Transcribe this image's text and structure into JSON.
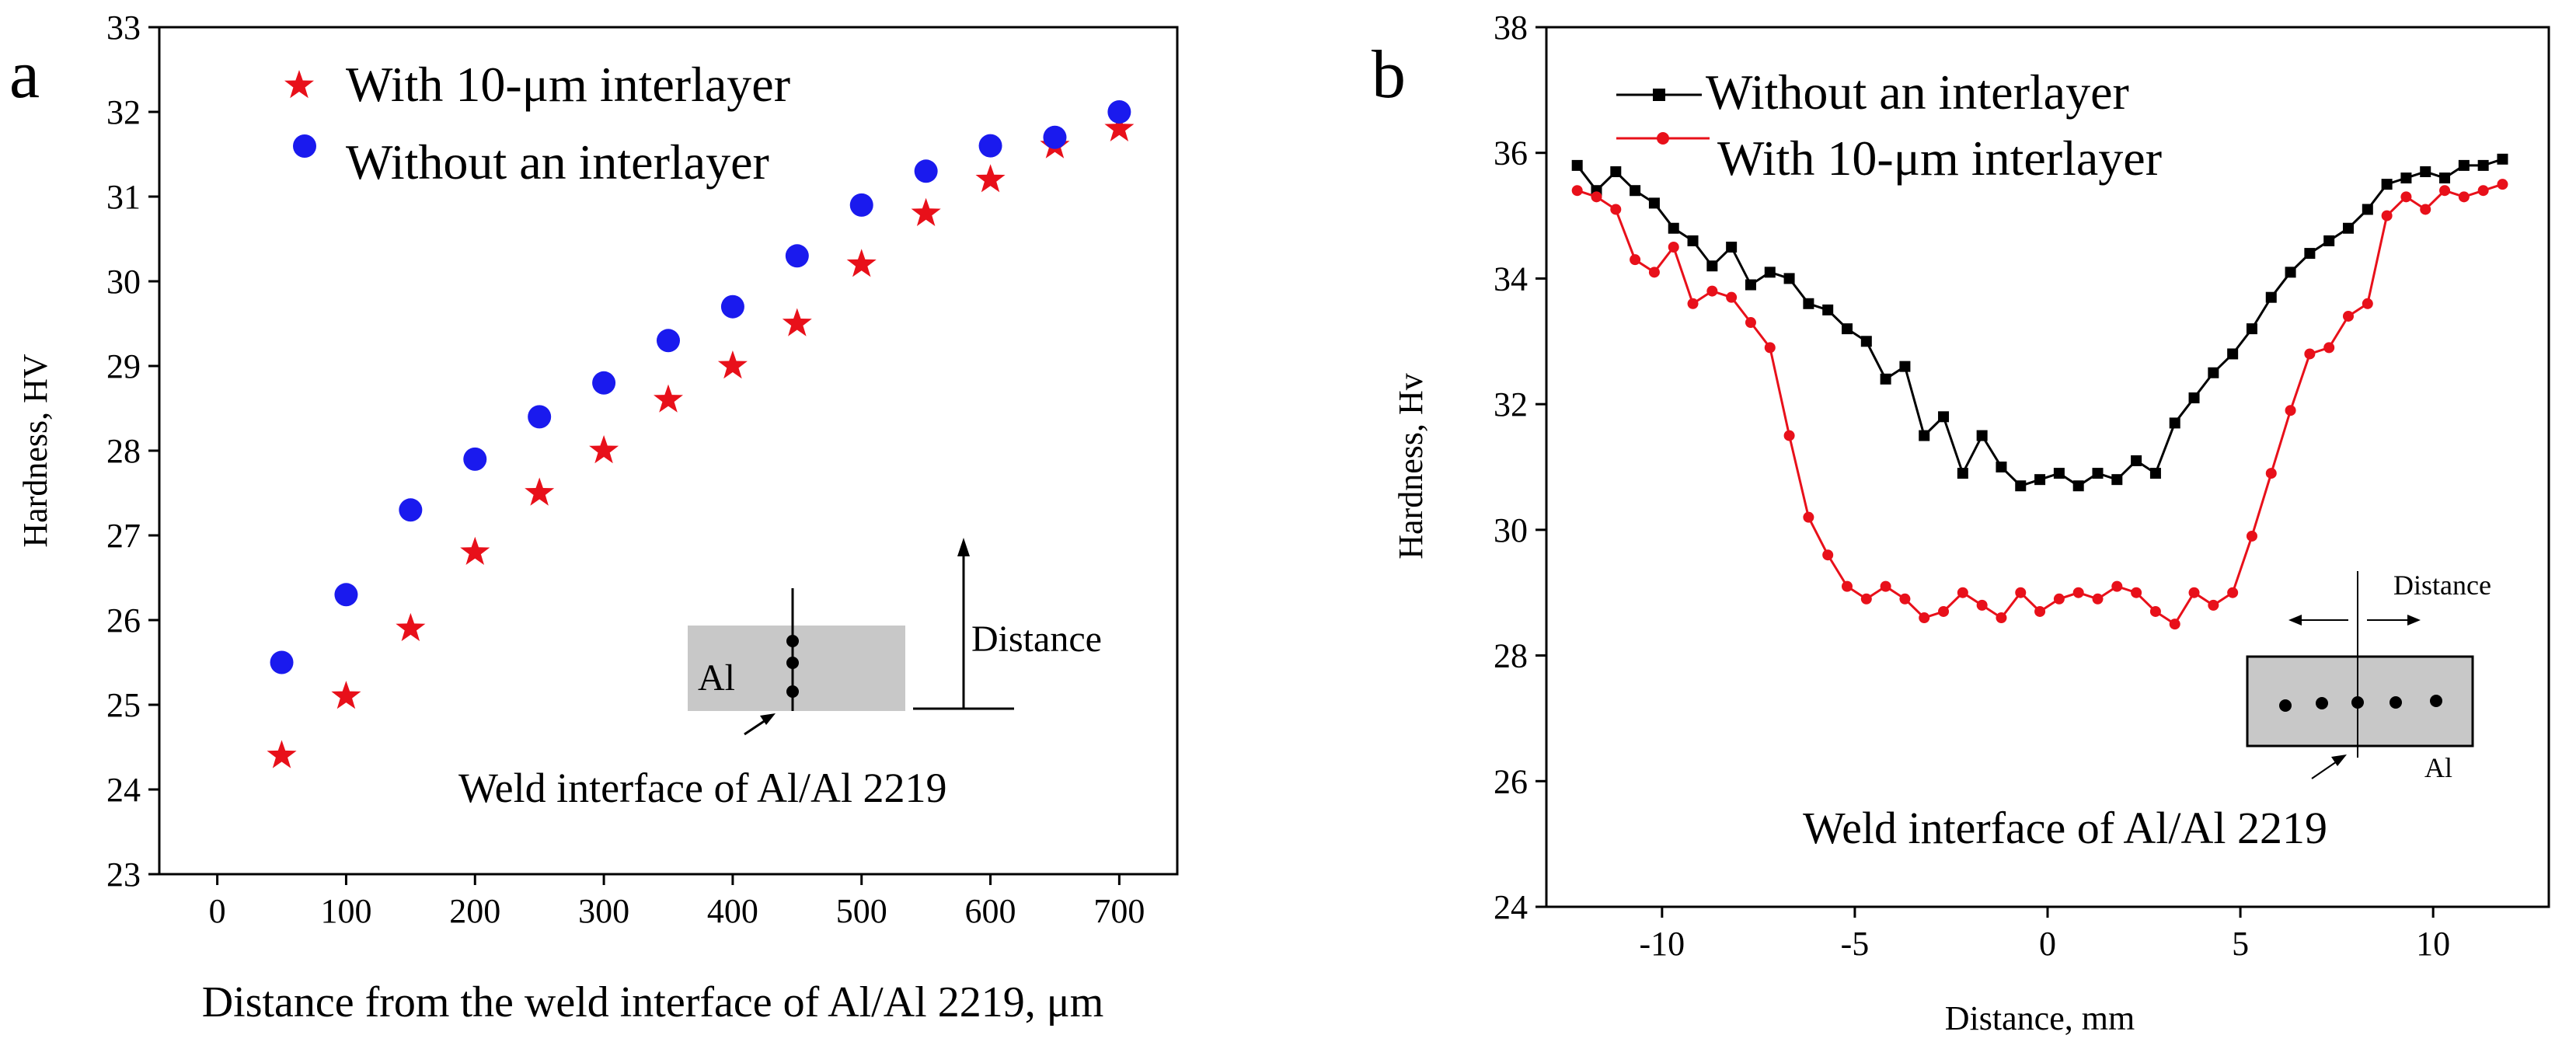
{
  "panels": {
    "a": {
      "label": "a",
      "inset": {
        "material": "Al",
        "arrow_label": "Distance",
        "caption": "Weld interface of Al/Al 2219"
      }
    },
    "b": {
      "label": "b",
      "inset": {
        "material": "Al",
        "arrow_label": "Distance",
        "caption": "Weld interface of Al/Al 2219"
      }
    }
  },
  "chart_data": [
    {
      "type": "scatter",
      "panel": "a",
      "xlabel": "Distance from the weld interface of Al/Al 2219, μm",
      "ylabel": "Hardness, HV",
      "xlim": [
        -45,
        745
      ],
      "ylim": [
        23,
        33
      ],
      "xticks": [
        0,
        100,
        200,
        300,
        400,
        500,
        600,
        700
      ],
      "yticks": [
        23,
        24,
        25,
        26,
        27,
        28,
        29,
        30,
        31,
        32,
        33
      ],
      "legend_position": "top-left",
      "grid": false,
      "series": [
        {
          "name": "With 10-μm interlayer",
          "marker": "star",
          "color": "#e8101a",
          "x": [
            50,
            100,
            150,
            200,
            250,
            300,
            350,
            400,
            450,
            500,
            550,
            600,
            650,
            700
          ],
          "y": [
            24.4,
            25.1,
            25.9,
            26.8,
            27.5,
            28.0,
            28.6,
            29.0,
            29.5,
            30.2,
            30.8,
            31.2,
            31.6,
            31.8
          ]
        },
        {
          "name": "Without an interlayer",
          "marker": "circle",
          "color": "#1a1aee",
          "x": [
            50,
            100,
            150,
            200,
            250,
            300,
            350,
            400,
            450,
            500,
            550,
            600,
            650,
            700
          ],
          "y": [
            25.5,
            26.3,
            27.3,
            27.9,
            28.4,
            28.8,
            29.3,
            29.7,
            30.3,
            30.9,
            31.3,
            31.6,
            31.7,
            32.0
          ]
        }
      ]
    },
    {
      "type": "line",
      "panel": "b",
      "xlabel": "Distance, mm",
      "ylabel": "Hardness, Hv",
      "xlim": [
        -13,
        13
      ],
      "ylim": [
        24,
        38
      ],
      "xticks": [
        -10,
        -5,
        0,
        5,
        10
      ],
      "yticks": [
        24,
        26,
        28,
        30,
        32,
        34,
        36,
        38
      ],
      "legend_position": "top-left",
      "grid": false,
      "series": [
        {
          "name": "Without an interlayer",
          "marker": "square",
          "color": "#000000",
          "x": [
            -12.2,
            -11.7,
            -11.2,
            -10.7,
            -10.2,
            -9.7,
            -9.2,
            -8.7,
            -8.2,
            -7.7,
            -7.2,
            -6.7,
            -6.2,
            -5.7,
            -5.2,
            -4.7,
            -4.2,
            -3.7,
            -3.2,
            -2.7,
            -2.2,
            -1.7,
            -1.2,
            -0.7,
            -0.2,
            0.3,
            0.8,
            1.3,
            1.8,
            2.3,
            2.8,
            3.3,
            3.8,
            4.3,
            4.8,
            5.3,
            5.8,
            6.3,
            6.8,
            7.3,
            7.8,
            8.3,
            8.8,
            9.3,
            9.8,
            10.3,
            10.8,
            11.3,
            11.8
          ],
          "y": [
            35.8,
            35.4,
            35.7,
            35.4,
            35.2,
            34.8,
            34.6,
            34.2,
            34.5,
            33.9,
            34.1,
            34.0,
            33.6,
            33.5,
            33.2,
            33.0,
            32.4,
            32.6,
            31.5,
            31.8,
            30.9,
            31.5,
            31.0,
            30.7,
            30.8,
            30.9,
            30.7,
            30.9,
            30.8,
            31.1,
            30.9,
            31.7,
            32.1,
            32.5,
            32.8,
            33.2,
            33.7,
            34.1,
            34.4,
            34.6,
            34.8,
            35.1,
            35.5,
            35.6,
            35.7,
            35.6,
            35.8,
            35.8,
            35.9
          ]
        },
        {
          "name": "With 10-μm interlayer",
          "marker": "circle",
          "color": "#e8101a",
          "x": [
            -12.2,
            -11.7,
            -11.2,
            -10.7,
            -10.2,
            -9.7,
            -9.2,
            -8.7,
            -8.2,
            -7.7,
            -7.2,
            -6.7,
            -6.2,
            -5.7,
            -5.2,
            -4.7,
            -4.2,
            -3.7,
            -3.2,
            -2.7,
            -2.2,
            -1.7,
            -1.2,
            -0.7,
            -0.2,
            0.3,
            0.8,
            1.3,
            1.8,
            2.3,
            2.8,
            3.3,
            3.8,
            4.3,
            4.8,
            5.3,
            5.8,
            6.3,
            6.8,
            7.3,
            7.8,
            8.3,
            8.8,
            9.3,
            9.8,
            10.3,
            10.8,
            11.3,
            11.8
          ],
          "y": [
            35.4,
            35.3,
            35.1,
            34.3,
            34.1,
            34.5,
            33.6,
            33.8,
            33.7,
            33.3,
            32.9,
            31.5,
            30.2,
            29.6,
            29.1,
            28.9,
            29.1,
            28.9,
            28.6,
            28.7,
            29.0,
            28.8,
            28.6,
            29.0,
            28.7,
            28.9,
            29.0,
            28.9,
            29.1,
            29.0,
            28.7,
            28.5,
            29.0,
            28.8,
            29.0,
            29.9,
            30.9,
            31.9,
            32.8,
            32.9,
            33.4,
            33.6,
            35.0,
            35.3,
            35.1,
            35.4,
            35.3,
            35.4,
            35.5
          ]
        }
      ]
    }
  ]
}
